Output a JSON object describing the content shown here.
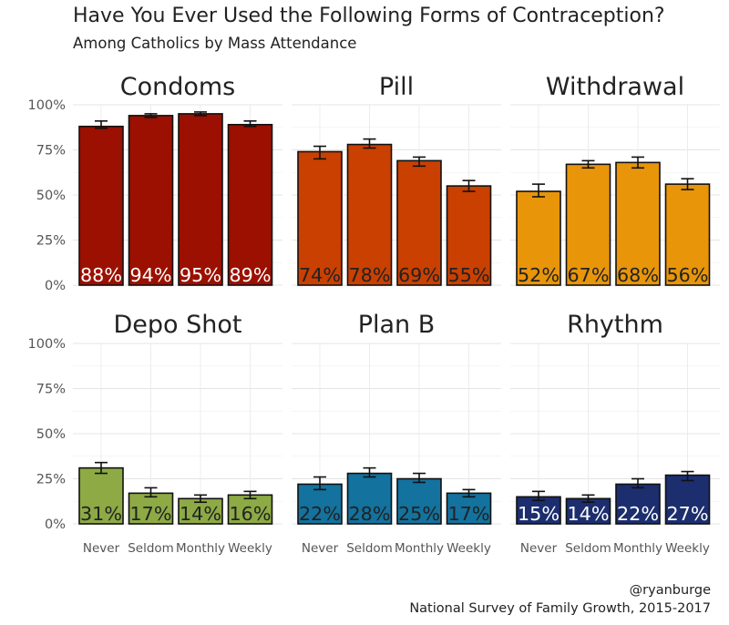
{
  "title": "Have You Ever Used the Following Forms of Contraception?",
  "subtitle": "Among Catholics by Mass Attendance",
  "caption": [
    "@ryanburge",
    "National Survey of Family Growth, 2015-2017"
  ],
  "chart_data": {
    "type": "bar",
    "categories": [
      "Never",
      "Seldom",
      "Monthly",
      "Weekly"
    ],
    "y_ticks": [
      "0%",
      "25%",
      "50%",
      "75%",
      "100%"
    ],
    "ylim": [
      0,
      100
    ],
    "grid": true,
    "panels": [
      {
        "name": "Condoms",
        "color": "#9b1000",
        "label_color": "#ffffff",
        "values": [
          88,
          94,
          95,
          89
        ],
        "labels": [
          "88%",
          "94%",
          "95%",
          "89%"
        ],
        "err_low": [
          87,
          93,
          94,
          88
        ],
        "err_high": [
          91,
          95,
          96,
          91
        ]
      },
      {
        "name": "Pill",
        "color": "#c94000",
        "label_color": "#222222",
        "values": [
          74,
          78,
          69,
          55
        ],
        "labels": [
          "74%",
          "78%",
          "69%",
          "55%"
        ],
        "err_low": [
          70,
          76,
          66,
          52
        ],
        "err_high": [
          77,
          81,
          71,
          58
        ]
      },
      {
        "name": "Withdrawal",
        "color": "#e8950a",
        "label_color": "#222222",
        "values": [
          52,
          67,
          68,
          56
        ],
        "labels": [
          "52%",
          "67%",
          "68%",
          "56%"
        ],
        "err_low": [
          49,
          65,
          65,
          53
        ],
        "err_high": [
          56,
          69,
          71,
          59
        ]
      },
      {
        "name": "Depo Shot",
        "color": "#8daa45",
        "label_color": "#222222",
        "values": [
          31,
          17,
          14,
          16
        ],
        "labels": [
          "31%",
          "17%",
          "14%",
          "16%"
        ],
        "err_low": [
          28,
          15,
          12,
          14
        ],
        "err_high": [
          34,
          20,
          16,
          18
        ]
      },
      {
        "name": "Plan B",
        "color": "#13729e",
        "label_color": "#222222",
        "values": [
          22,
          28,
          25,
          17
        ],
        "labels": [
          "22%",
          "28%",
          "25%",
          "17%"
        ],
        "err_low": [
          19,
          26,
          23,
          15
        ],
        "err_high": [
          26,
          31,
          28,
          19
        ]
      },
      {
        "name": "Rhythm",
        "color": "#1c2e6e",
        "label_color": "#ffffff",
        "values": [
          15,
          14,
          22,
          27
        ],
        "labels": [
          "15%",
          "14%",
          "22%",
          "27%"
        ],
        "err_low": [
          13,
          12,
          20,
          24
        ],
        "err_high": [
          18,
          16,
          25,
          29
        ]
      }
    ]
  }
}
